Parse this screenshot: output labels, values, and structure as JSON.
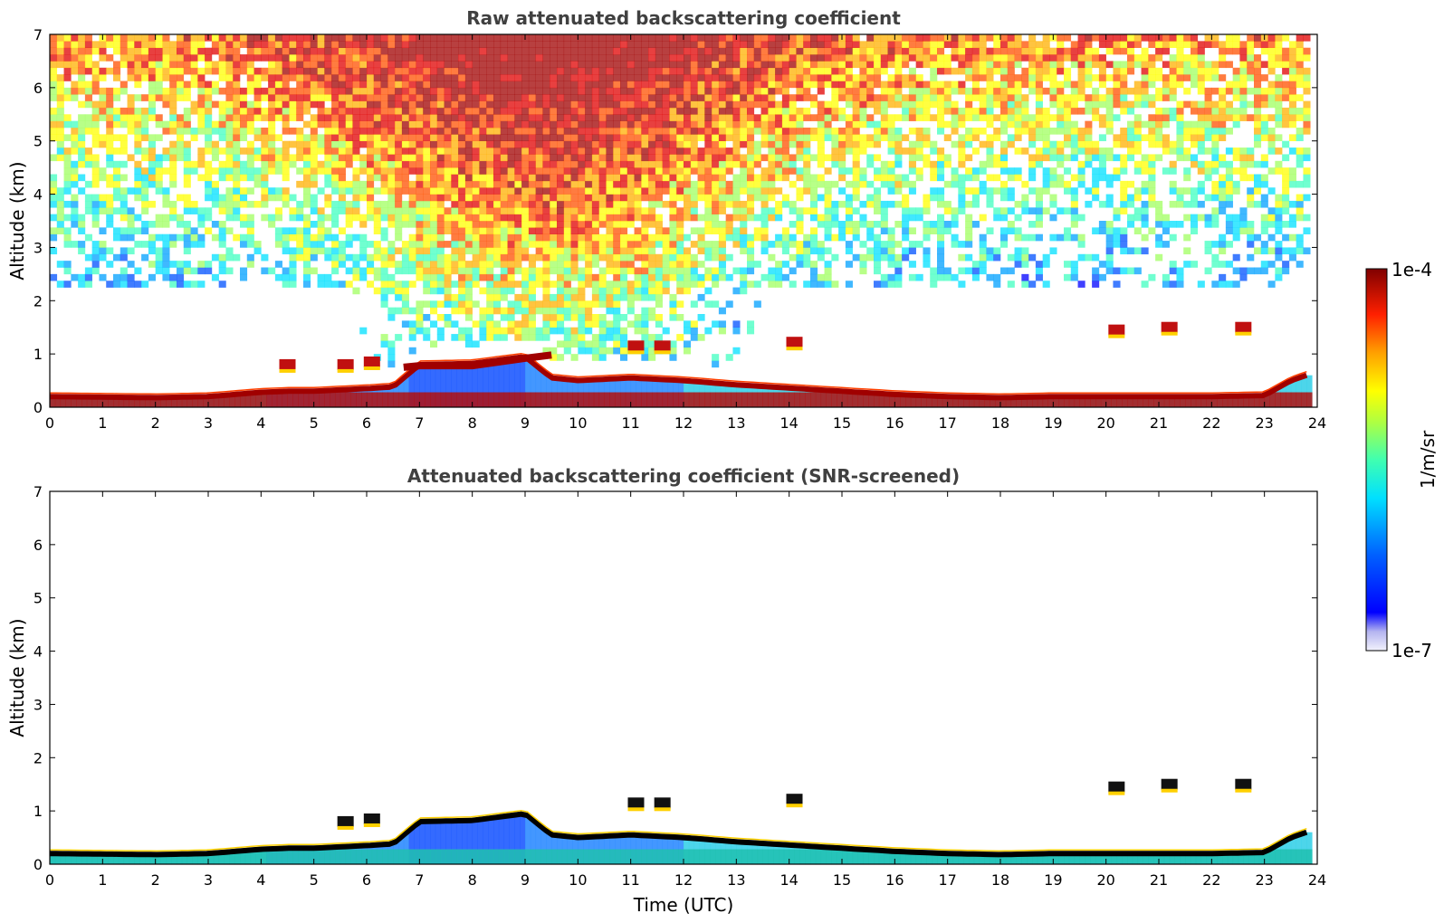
{
  "chart_data": [
    {
      "type": "heatmap",
      "title": "Raw attenuated backscattering coefficient",
      "xlabel": "",
      "ylabel": "Altitude (km)",
      "xlim": [
        0,
        24
      ],
      "ylim": [
        0,
        7
      ],
      "xticks": [
        "0",
        "1",
        "2",
        "3",
        "4",
        "5",
        "6",
        "7",
        "8",
        "9",
        "10",
        "11",
        "12",
        "13",
        "14",
        "15",
        "16",
        "17",
        "18",
        "19",
        "20",
        "21",
        "22",
        "23",
        "24"
      ],
      "yticks": [
        "0",
        "1",
        "2",
        "3",
        "4",
        "5",
        "6",
        "7"
      ],
      "layers": [
        {
          "name": "boundary-layer-top",
          "x": [
            0,
            2,
            3,
            4,
            4.5,
            5,
            6,
            6.5,
            7,
            8,
            9,
            9.5,
            10,
            11,
            12,
            13,
            14,
            15,
            16,
            17,
            18,
            19,
            20,
            21,
            22,
            23,
            23.5,
            23.8
          ],
          "y": [
            0.2,
            0.18,
            0.2,
            0.28,
            0.3,
            0.3,
            0.35,
            0.38,
            0.8,
            0.82,
            0.95,
            0.55,
            0.5,
            0.55,
            0.5,
            0.42,
            0.36,
            0.3,
            0.24,
            0.2,
            0.18,
            0.2,
            0.2,
            0.2,
            0.2,
            0.22,
            0.5,
            0.6
          ]
        },
        {
          "name": "elevated-aerosol-layer",
          "x": [
            6.7,
            7,
            8,
            8.5,
            9,
            9.5
          ],
          "y": [
            0.75,
            0.78,
            0.78,
            0.85,
            0.92,
            0.98
          ]
        },
        {
          "name": "cloud-patches",
          "x": [
            4.5,
            5.6,
            6.1,
            11.1,
            11.6,
            14.1,
            20.2,
            21.2,
            22.6
          ],
          "y": [
            0.8,
            0.8,
            0.85,
            1.15,
            1.15,
            1.22,
            1.45,
            1.5,
            1.5
          ]
        }
      ]
    },
    {
      "type": "heatmap",
      "title": "Attenuated backscattering coefficient (SNR-screened)",
      "xlabel": "Time (UTC)",
      "ylabel": "Altitude (km)",
      "xlim": [
        0,
        24
      ],
      "ylim": [
        0,
        7
      ],
      "xticks": [
        "0",
        "1",
        "2",
        "3",
        "4",
        "5",
        "6",
        "7",
        "8",
        "9",
        "10",
        "11",
        "12",
        "13",
        "14",
        "15",
        "16",
        "17",
        "18",
        "19",
        "20",
        "21",
        "22",
        "23",
        "24"
      ],
      "yticks": [
        "0",
        "1",
        "2",
        "3",
        "4",
        "5",
        "6",
        "7"
      ],
      "layers": [
        {
          "name": "boundary-layer-top",
          "x": [
            0,
            2,
            3,
            4,
            4.5,
            5,
            6,
            6.5,
            7,
            8,
            9,
            9.5,
            10,
            11,
            12,
            13,
            14,
            15,
            16,
            17,
            18,
            19,
            20,
            21,
            22,
            23,
            23.5,
            23.8
          ],
          "y": [
            0.2,
            0.18,
            0.2,
            0.28,
            0.3,
            0.3,
            0.35,
            0.38,
            0.8,
            0.82,
            0.95,
            0.55,
            0.5,
            0.55,
            0.5,
            0.42,
            0.36,
            0.3,
            0.24,
            0.2,
            0.18,
            0.2,
            0.2,
            0.2,
            0.2,
            0.22,
            0.5,
            0.6
          ]
        },
        {
          "name": "cloud-patches",
          "x": [
            5.6,
            6.1,
            11.1,
            11.6,
            14.1,
            20.2,
            21.2,
            22.6
          ],
          "y": [
            0.8,
            0.85,
            1.15,
            1.15,
            1.22,
            1.45,
            1.5,
            1.5
          ]
        }
      ]
    }
  ],
  "colorbar": {
    "label": "1/m/sr",
    "max_label": "1e-4",
    "min_label": "1e-7",
    "colors": [
      "#e6e6fa",
      "#c8c8f5",
      "#a0a0f0",
      "#0000ff",
      "#0040ff",
      "#0080ff",
      "#00c0ff",
      "#00ffff",
      "#40ffc0",
      "#80ff80",
      "#c0ff40",
      "#ffff00",
      "#ffc000",
      "#ff8000",
      "#ff4000",
      "#ff0000",
      "#c00000",
      "#800000"
    ]
  }
}
